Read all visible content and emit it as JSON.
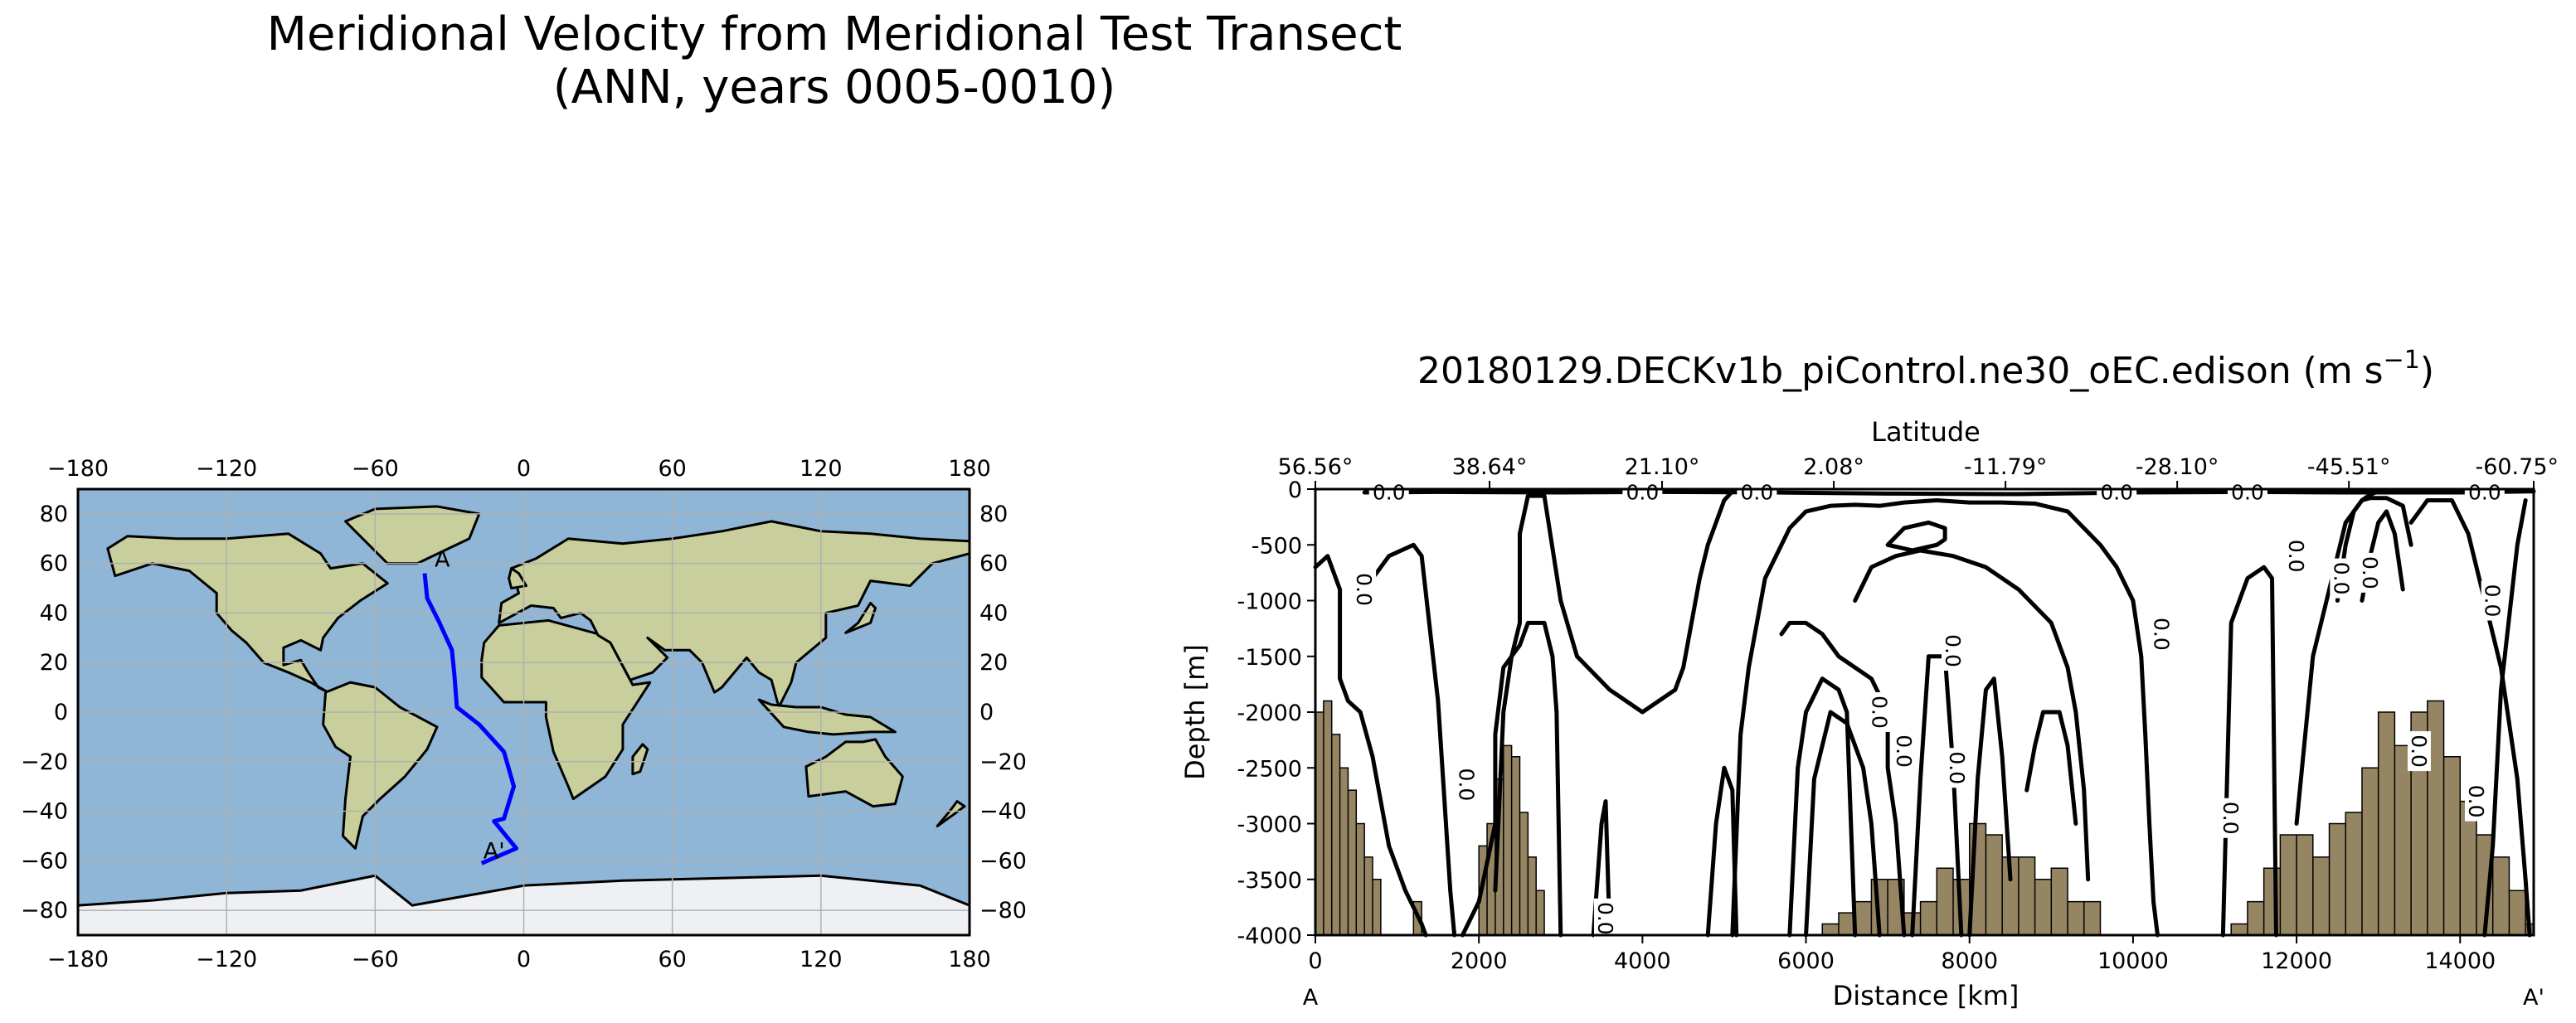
{
  "figure": {
    "title_line1": "Meridional Velocity from Meridional Test Transect",
    "title_line2": "(ANN, years 0005-0010)"
  },
  "colors": {
    "transect_line": "#0000ff",
    "ocean": "#8fb6d6",
    "land": "#c8cf9c",
    "ice": "#eef0f4",
    "topography": "#968563",
    "contour": "#000000",
    "grid": "#b0b0b0"
  },
  "map": {
    "xticks": [
      "−180",
      "−120",
      "−60",
      "0",
      "60",
      "120",
      "180"
    ],
    "yticks": [
      "80",
      "60",
      "40",
      "20",
      "0",
      "−20",
      "−40",
      "−60",
      "−80"
    ],
    "start_label": "A",
    "end_label": "A'",
    "transect": {
      "lon": [
        -40,
        -39,
        -34,
        -29,
        -28,
        -27,
        -18,
        -8,
        -4,
        -8,
        -12,
        -3,
        -17
      ],
      "lat": [
        56,
        46,
        36,
        25,
        15,
        2,
        -5,
        -16,
        -30,
        -43,
        -44,
        -55,
        -61
      ]
    }
  },
  "chart_data": {
    "type": "contour",
    "title": "20180129.DECKv1b_piControl.ne30_oEC.edison (m s",
    "title_superscript": "−1",
    "title_close": ")",
    "xlabel": "Distance [km]",
    "ylabel": "Depth [m]",
    "top_axis_label": "Latitude",
    "xlim": [
      0,
      14900
    ],
    "ylim": [
      -4000,
      0
    ],
    "xticks": [
      0,
      2000,
      4000,
      6000,
      8000,
      10000,
      12000,
      14000
    ],
    "xtick_labels": [
      "0",
      "2000",
      "4000",
      "6000",
      "8000",
      "10000",
      "12000",
      "14000"
    ],
    "yticks": [
      0,
      -500,
      -1000,
      -1500,
      -2000,
      -2500,
      -3000,
      -3500,
      -4000
    ],
    "ytick_labels": [
      "0",
      "-500",
      "-1000",
      "-1500",
      "-2000",
      "-2500",
      "-3000",
      "-3500",
      "-4000"
    ],
    "latitude_ticks": {
      "distance": [
        0,
        2130,
        4240,
        6340,
        8440,
        10540,
        12640,
        14900
      ],
      "labels": [
        "56.56°",
        "38.64°",
        "21.10°",
        "2.08°",
        "-11.79°",
        "-28.10°",
        "-45.51°",
        "-60.75°"
      ]
    },
    "section_start": "A",
    "section_end": "A'",
    "contour_level_label": "0.0",
    "topography": {
      "distance": [
        0,
        100,
        200,
        300,
        400,
        500,
        600,
        700,
        800,
        900,
        1000,
        1100,
        1200,
        1300,
        1400,
        1500,
        1600,
        1700,
        1800,
        1900,
        2000,
        2100,
        2200,
        2300,
        2400,
        2500,
        2600,
        2700,
        2800,
        2900,
        3000,
        6000,
        6200,
        6400,
        6600,
        6800,
        7000,
        7200,
        7400,
        7600,
        7800,
        8000,
        8200,
        8400,
        8600,
        8800,
        9000,
        9200,
        9400,
        9600,
        11000,
        11200,
        11400,
        11600,
        11800,
        12000,
        12200,
        12400,
        12600,
        12800,
        13000,
        13200,
        13400,
        13600,
        13800,
        14000,
        14200,
        14400,
        14600,
        14800,
        14900
      ],
      "depth": [
        -2000,
        -1900,
        -2200,
        -2500,
        -2700,
        -3000,
        -3300,
        -3500,
        -4000,
        -4000,
        -4000,
        -4000,
        -3700,
        -4000,
        -4000,
        -4000,
        -4000,
        -4000,
        -4000,
        -4000,
        -3200,
        -3000,
        -2600,
        -2300,
        -2400,
        -2900,
        -3300,
        -3600,
        -4000,
        -4000,
        -4000,
        -4000,
        -3900,
        -3800,
        -3700,
        -3500,
        -3500,
        -3800,
        -3700,
        -3400,
        -3500,
        -3000,
        -3100,
        -3300,
        -3300,
        -3500,
        -3400,
        -3700,
        -3700,
        -4000,
        -4000,
        -3900,
        -3700,
        -3400,
        -3100,
        -3100,
        -3300,
        -3000,
        -2900,
        -2500,
        -2000,
        -2300,
        -2000,
        -1900,
        -2400,
        -2800,
        -3100,
        -3300,
        -3600,
        -3900,
        -4000
      ]
    },
    "contours": [
      {
        "d": [
          0,
          150,
          300,
          300,
          400,
          550,
          700,
          900,
          1100,
          1300,
          1350
        ],
        "z": [
          -700,
          -600,
          -900,
          -1700,
          -1900,
          -2000,
          -2400,
          -3200,
          -3600,
          -3900,
          -4000
        ]
      },
      {
        "d": [
          600,
          900,
          1200,
          1300,
          1500,
          1650,
          1700
        ],
        "z": [
          -900,
          -600,
          -500,
          -600,
          -1900,
          -3600,
          -4000
        ]
      },
      {
        "d": [
          1800,
          2000,
          2200,
          2200,
          2300,
          2500,
          2600,
          2800,
          2900,
          2950,
          3000
        ],
        "z": [
          -4000,
          -3700,
          -3000,
          -2200,
          -1600,
          -1400,
          -1200,
          -1200,
          -1500,
          -2000,
          -4000
        ]
      },
      {
        "d": [
          2200,
          2300,
          2400,
          2500,
          2500,
          2600,
          2800,
          3000,
          3200,
          3600,
          4000,
          4400
        ],
        "z": [
          -3600,
          -2000,
          -1500,
          -1200,
          -400,
          -60,
          -60,
          -1000,
          -1500,
          -1800,
          -2000,
          -1800
        ]
      },
      {
        "d": [
          3400,
          3500,
          3550,
          3600
        ],
        "z": [
          -4000,
          -3000,
          -2800,
          -4000
        ]
      },
      {
        "d": [
          4400,
          4500,
          4600,
          4700,
          4800,
          4900,
          5000,
          5100
        ],
        "z": [
          -1800,
          -1600,
          -1200,
          -800,
          -500,
          -300,
          -100,
          -20
        ]
      },
      {
        "d": [
          4800,
          4900,
          5000,
          5100,
          5150
        ],
        "z": [
          -4000,
          -3000,
          -2500,
          -2700,
          -4000
        ]
      },
      {
        "d": [
          5100,
          5200,
          5300,
          5500,
          5800,
          6000,
          6300,
          6600,
          6900
        ],
        "z": [
          -4000,
          -2200,
          -1600,
          -800,
          -350,
          -200,
          -150,
          -140,
          -150
        ]
      },
      {
        "d": [
          6900,
          7200,
          7600,
          8000,
          8400,
          8800,
          9200,
          9600,
          9800,
          10000,
          10100
        ],
        "z": [
          -150,
          -120,
          -100,
          -120,
          -120,
          -130,
          -200,
          -500,
          -700,
          -1000,
          -1500
        ]
      },
      {
        "d": [
          10100,
          10150,
          10200,
          10250,
          10300
        ],
        "z": [
          -1500,
          -2200,
          -3000,
          -3700,
          -4000
        ]
      },
      {
        "d": [
          5700,
          5800,
          6000,
          6200,
          6400,
          6600,
          6800,
          7000,
          7000,
          7100,
          7200
        ],
        "z": [
          -1300,
          -1200,
          -1200,
          -1300,
          -1500,
          -1600,
          -1700,
          -2000,
          -2500,
          -3000,
          -4000
        ]
      },
      {
        "d": [
          5800,
          5900,
          6000,
          6200,
          6400,
          6500,
          6600
        ],
        "z": [
          -4000,
          -2500,
          -2000,
          -1700,
          -1800,
          -2000,
          -4000
        ]
      },
      {
        "d": [
          6000,
          6100,
          6300,
          6500,
          6700,
          6800,
          6900
        ],
        "z": [
          -4000,
          -2600,
          -2000,
          -2100,
          -2500,
          -3000,
          -4000
        ]
      },
      {
        "d": [
          6600,
          6800,
          7100,
          7400,
          7800,
          8200,
          8600,
          9000,
          9200,
          9300,
          9400,
          9450
        ],
        "z": [
          -1000,
          -700,
          -600,
          -550,
          -600,
          -700,
          -900,
          -1200,
          -1600,
          -2000,
          -2700,
          -3500
        ]
      },
      {
        "d": [
          7300,
          7400,
          7500,
          7700,
          7800,
          7900
        ],
        "z": [
          -4000,
          -2600,
          -1500,
          -1500,
          -2500,
          -4000
        ]
      },
      {
        "d": [
          8000,
          8100,
          8200,
          8300,
          8400,
          8500
        ],
        "z": [
          -4000,
          -2600,
          -1800,
          -1700,
          -2400,
          -3500
        ]
      },
      {
        "d": [
          8700,
          8800,
          8900,
          9100,
          9200,
          9300
        ],
        "z": [
          -2700,
          -2300,
          -2000,
          -2000,
          -2300,
          -3000
        ]
      },
      {
        "d": [
          7000,
          7200,
          7500,
          7700,
          7700,
          7600,
          7300,
          7000
        ],
        "z": [
          -500,
          -350,
          -300,
          -350,
          -450,
          -500,
          -550,
          -500
        ]
      },
      {
        "d": [
          11100,
          11200,
          11400,
          11600,
          11700,
          11750
        ],
        "z": [
          -4000,
          -1200,
          -800,
          -700,
          -800,
          -4000
        ]
      },
      {
        "d": [
          12000,
          12200,
          12400,
          12500,
          12600,
          12800,
          12900,
          13000
        ],
        "z": [
          -3000,
          -1500,
          -900,
          -600,
          -300,
          -100,
          -50,
          -20
        ]
      },
      {
        "d": [
          12500,
          12600,
          12700,
          12800,
          12900,
          13100,
          13300,
          13400
        ],
        "z": [
          -1000,
          -500,
          -200,
          -100,
          -80,
          -80,
          -150,
          -500
        ]
      },
      {
        "d": [
          12800,
          12900,
          13000,
          13100,
          13200,
          13300
        ],
        "z": [
          -1000,
          -600,
          -300,
          -200,
          -400,
          -900
        ]
      },
      {
        "d": [
          13400,
          13600,
          13900,
          14100,
          14300,
          14500,
          14700,
          14800,
          14850
        ],
        "z": [
          -300,
          -100,
          -100,
          -400,
          -1000,
          -1600,
          -2600,
          -3500,
          -4000
        ]
      },
      {
        "d": [
          14300,
          14400,
          14500,
          14700,
          14800
        ],
        "z": [
          -4000,
          -3200,
          -1800,
          -500,
          -100
        ]
      },
      {
        "d": [
          600,
          1500,
          3000,
          4200,
          5600,
          7000,
          8600,
          10000,
          11400,
          12600,
          14000,
          14900
        ],
        "z": [
          -30,
          -25,
          -30,
          -25,
          -30,
          -40,
          -45,
          -30,
          -25,
          -30,
          -30,
          -20
        ]
      }
    ],
    "level_label_positions": [
      {
        "d": 600,
        "z": -900,
        "rot": 90
      },
      {
        "d": 1850,
        "z": -2650,
        "rot": 90
      },
      {
        "d": 3550,
        "z": -3850,
        "rot": 90
      },
      {
        "d": 10350,
        "z": -1300,
        "rot": 90
      },
      {
        "d": 7800,
        "z": -1450,
        "rot": 90
      },
      {
        "d": 6900,
        "z": -2000,
        "rot": 90
      },
      {
        "d": 7200,
        "z": -2350,
        "rot": 90
      },
      {
        "d": 7850,
        "z": -2500,
        "rot": 90
      },
      {
        "d": 11200,
        "z": -2950,
        "rot": 90
      },
      {
        "d": 12000,
        "z": -600,
        "rot": 90
      },
      {
        "d": 12550,
        "z": -800,
        "rot": 90
      },
      {
        "d": 12900,
        "z": -750,
        "rot": 90
      },
      {
        "d": 13500,
        "z": -2350,
        "rot": 90
      },
      {
        "d": 14400,
        "z": -1000,
        "rot": 90
      },
      {
        "d": 14200,
        "z": -2800,
        "rot": 90
      },
      {
        "d": 900,
        "z": -25,
        "rot": 0
      },
      {
        "d": 4000,
        "z": -25,
        "rot": 0
      },
      {
        "d": 5400,
        "z": -25,
        "rot": 0
      },
      {
        "d": 9800,
        "z": -25,
        "rot": 0
      },
      {
        "d": 11400,
        "z": -25,
        "rot": 0
      },
      {
        "d": 14300,
        "z": -25,
        "rot": 0
      }
    ]
  }
}
